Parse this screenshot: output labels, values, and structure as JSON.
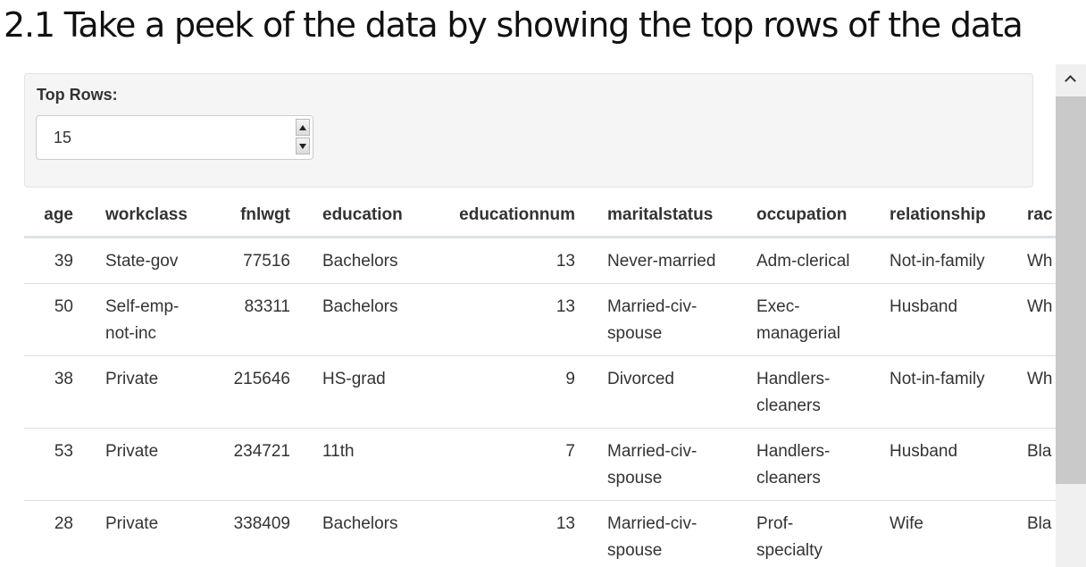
{
  "page": {
    "title": "2.1 Take a peek of the data by showing the top rows of the data"
  },
  "controls": {
    "top_rows_label": "Top Rows:",
    "top_rows_value": "15"
  },
  "table": {
    "headers": [
      "age",
      "workclass",
      "fnlwgt",
      "education",
      "educationnum",
      "maritalstatus",
      "occupation",
      "relationship",
      "rac"
    ],
    "rows": [
      [
        "39",
        "State-gov",
        "77516",
        "Bachelors",
        "13",
        "Never-married",
        "Adm-clerical",
        "Not-in-family",
        "Wh"
      ],
      [
        "50",
        "Self-emp-not-inc",
        "83311",
        "Bachelors",
        "13",
        "Married-civ-spouse",
        "Exec-managerial",
        "Husband",
        "Wh"
      ],
      [
        "38",
        "Private",
        "215646",
        "HS-grad",
        "9",
        "Divorced",
        "Handlers-cleaners",
        "Not-in-family",
        "Wh"
      ],
      [
        "53",
        "Private",
        "234721",
        "11th",
        "7",
        "Married-civ-spouse",
        "Handlers-cleaners",
        "Husband",
        "Bla"
      ],
      [
        "28",
        "Private",
        "338409",
        "Bachelors",
        "13",
        "Married-civ-spouse",
        "Prof-specialty",
        "Wife",
        "Bla"
      ]
    ]
  },
  "icons": {
    "spinner_up": "triangle-up-icon",
    "spinner_down": "triangle-down-icon",
    "scroll_up": "chevron-up-icon"
  },
  "colors": {
    "panel_bg": "#f5f5f5",
    "header_rule": "#dde2e6",
    "scroll_thumb": "#c9c9c9"
  }
}
